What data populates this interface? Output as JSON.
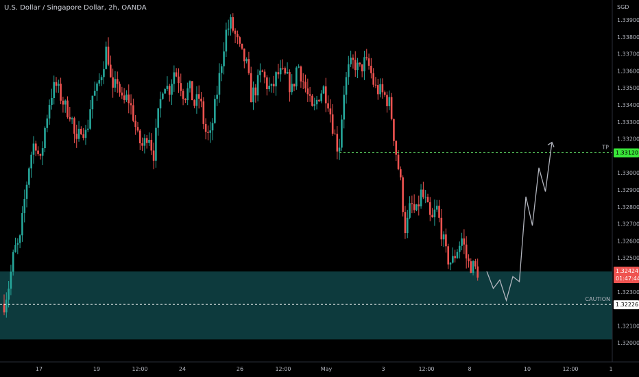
{
  "header": {
    "title": "U.S. Dollar / Singapore Dollar, 2h, OANDA"
  },
  "colors": {
    "up": "#26a69a",
    "down": "#ef5350",
    "zone": "#0d3a3d",
    "tp": "#4caf50",
    "tp_badge": "#39e639",
    "caution": "#ffffff",
    "price_badge": "#ef5350",
    "projection": "#b2b5be"
  },
  "chart_data": {
    "type": "candlestick",
    "symbol": "U.S. Dollar / Singapore Dollar",
    "interval": "2h",
    "source": "OANDA",
    "currency_label": "SGD",
    "y_ticks": [
      "1.33900",
      "1.33800",
      "1.33700",
      "1.33600",
      "1.33500",
      "1.33400",
      "1.33300",
      "1.33200",
      "1.33000",
      "1.32900",
      "1.32800",
      "1.32700",
      "1.32600",
      "1.32500",
      "1.32300",
      "1.32100",
      "1.32000"
    ],
    "x_ticks": [
      "17",
      "19",
      "12:00",
      "24",
      "26",
      "12:00",
      "May",
      "3",
      "12:00",
      "8",
      "10",
      "12:00",
      "1"
    ],
    "close_path": [
      1.3223,
      1.3235,
      1.3255,
      1.3258,
      1.3285,
      1.3308,
      1.332,
      1.3305,
      1.3328,
      1.3345,
      1.3352,
      1.3345,
      1.3338,
      1.3335,
      1.3315,
      1.3328,
      1.3322,
      1.3345,
      1.3348,
      1.336,
      1.3375,
      1.3345,
      1.3355,
      1.334,
      1.3345,
      1.3335,
      1.332,
      1.3315,
      1.3325,
      1.331,
      1.3335,
      1.3355,
      1.3348,
      1.336,
      1.3355,
      1.3345,
      1.335,
      1.334,
      1.3345,
      1.3325,
      1.332,
      1.334,
      1.336,
      1.3382,
      1.3388,
      1.338,
      1.337,
      1.3365,
      1.3345,
      1.335,
      1.336,
      1.3352,
      1.3348,
      1.3358,
      1.3358,
      1.3355,
      1.3348,
      1.3365,
      1.3355,
      1.3345,
      1.3335,
      1.3345,
      1.335,
      1.3342,
      1.3325,
      1.3312,
      1.3348,
      1.3362,
      1.3365,
      1.336,
      1.3365,
      1.3362,
      1.335,
      1.3348,
      1.3345,
      1.334,
      1.3315,
      1.3295,
      1.3265,
      1.3282,
      1.3275,
      1.3288,
      1.3282,
      1.327,
      1.328,
      1.3265,
      1.325,
      1.3247,
      1.3255,
      1.3262,
      1.3247,
      1.3245,
      1.3242
    ],
    "levels": {
      "current_price": "1.32424",
      "countdown": "01:47:44",
      "tp_price": "1.33120",
      "tp_label": "TP",
      "caution_price": "1.32226",
      "caution_label": "CAUTION",
      "zone_low": 1.3202,
      "zone_high": 1.3242
    },
    "projection_path": [
      [
        0,
        1.3242
      ],
      [
        1,
        1.3232
      ],
      [
        2,
        1.3237
      ],
      [
        3,
        1.3225
      ],
      [
        4,
        1.3239
      ],
      [
        5,
        1.3236
      ],
      [
        6,
        1.3286
      ],
      [
        7,
        1.3269
      ],
      [
        8,
        1.3303
      ],
      [
        9,
        1.3289
      ],
      [
        10,
        1.3318
      ]
    ]
  }
}
